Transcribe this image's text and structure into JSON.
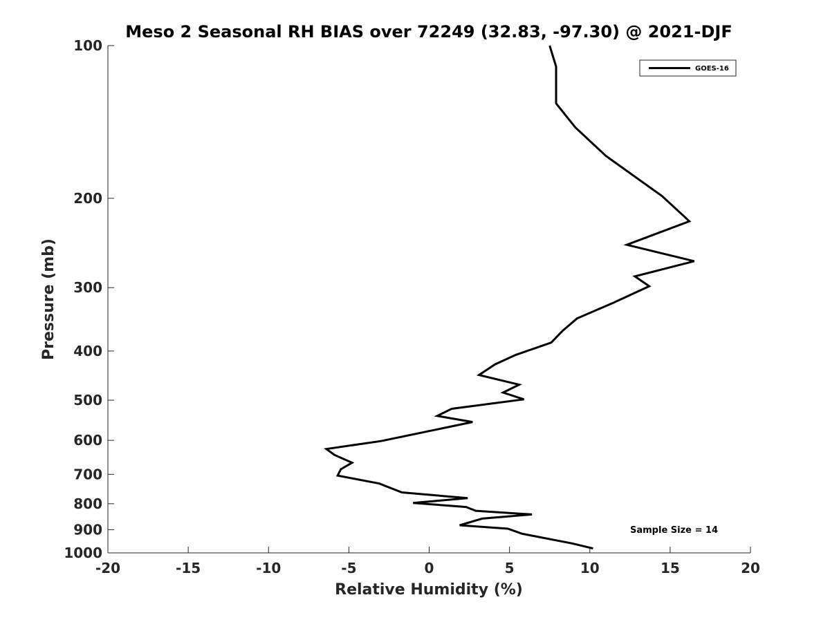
{
  "chart_data": {
    "type": "line",
    "title": "Meso 2 Seasonal RH BIAS over 72249 (32.83, -97.30) @ 2021-DJF",
    "xlabel": "Relative Humidity (%)",
    "ylabel": "Pressure (mb)",
    "xlim": [
      -20,
      20
    ],
    "ylim": [
      100,
      1000
    ],
    "y_scale": "log",
    "y_reversed": true,
    "x_ticks": [
      -20,
      -15,
      -10,
      -5,
      0,
      5,
      10,
      15,
      20
    ],
    "y_ticks": [
      100,
      200,
      300,
      400,
      500,
      600,
      700,
      800,
      900,
      1000
    ],
    "grid": false,
    "legend_position": "top-right",
    "series": [
      {
        "name": "GOES-16",
        "color": "#000000",
        "x": [
          7.5,
          7.9,
          7.9,
          7.9,
          9.1,
          11.0,
          14.5,
          16.2,
          12.3,
          16.5,
          12.8,
          13.7,
          11.4,
          9.2,
          8.3,
          7.6,
          5.4,
          4.1,
          3.1,
          5.6,
          4.6,
          5.9,
          1.4,
          0.5,
          2.7,
          -0.1,
          -3.0,
          -6.4,
          -5.9,
          -4.8,
          -5.5,
          -5.7,
          -3.1,
          -1.7,
          2.4,
          -1.0,
          2.3,
          2.9,
          6.4,
          3.3,
          1.9,
          4.9,
          5.8,
          8.9,
          10.2
        ],
        "y": [
          100,
          110,
          120,
          130,
          145,
          165,
          198,
          222,
          247,
          266,
          285,
          298,
          322,
          345,
          365,
          385,
          407,
          425,
          446,
          466,
          483,
          498,
          520,
          537,
          552,
          576,
          602,
          624,
          641,
          664,
          684,
          704,
          730,
          760,
          780,
          797,
          812,
          826,
          840,
          856,
          882,
          896,
          917,
          958,
          980
        ]
      }
    ],
    "annotation": "Sample Size = 14"
  }
}
